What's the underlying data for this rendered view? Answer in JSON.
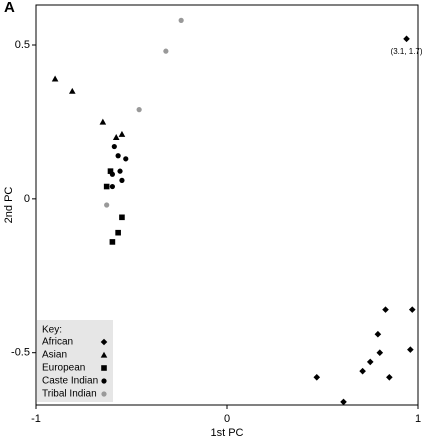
{
  "chart_data": {
    "type": "scatter",
    "panel_label": "A",
    "x_label": "1st PC",
    "y_label": "2nd PC",
    "xlim": [
      -1,
      1
    ],
    "ylim": [
      -0.67,
      0.63
    ],
    "xticks": [
      -1,
      0,
      1
    ],
    "yticks": [
      -0.5,
      0,
      0.5
    ],
    "legend_title": "Key:",
    "legend_position": "lower left",
    "series": [
      {
        "name": "African",
        "color": "#000000",
        "marker": "diamond",
        "x": [
          0.94,
          0.83,
          0.97,
          0.79,
          0.8,
          0.96,
          0.75,
          0.71,
          0.85,
          0.47,
          0.61
        ],
        "y": [
          0.52,
          -0.36,
          -0.36,
          -0.44,
          -0.5,
          -0.49,
          -0.53,
          -0.56,
          -0.58,
          -0.58,
          -0.66
        ]
      },
      {
        "name": "Asian",
        "color": "#000000",
        "marker": "triangle",
        "x": [
          -0.9,
          -0.81,
          -0.65,
          -0.55,
          -0.58
        ],
        "y": [
          0.39,
          0.35,
          0.25,
          0.21,
          0.2
        ]
      },
      {
        "name": "European",
        "color": "#000000",
        "marker": "square",
        "x": [
          -0.61,
          -0.63,
          -0.55,
          -0.57,
          -0.6
        ],
        "y": [
          0.09,
          0.04,
          -0.06,
          -0.11,
          -0.14
        ]
      },
      {
        "name": "Caste Indian",
        "color": "#000000",
        "marker": "circle",
        "x": [
          -0.59,
          -0.57,
          -0.53,
          -0.56,
          -0.6,
          -0.55,
          -0.6
        ],
        "y": [
          0.17,
          0.14,
          0.13,
          0.09,
          0.08,
          0.06,
          0.04
        ]
      },
      {
        "name": "Tribal Indian",
        "color": "#999999",
        "marker": "circle",
        "x": [
          -0.24,
          -0.32,
          -0.46,
          -0.63
        ],
        "y": [
          0.58,
          0.48,
          0.29,
          -0.02
        ]
      }
    ],
    "annotations": [
      {
        "text": "(3.1, 1.7)",
        "x": 0.94,
        "y": 0.52
      }
    ]
  }
}
